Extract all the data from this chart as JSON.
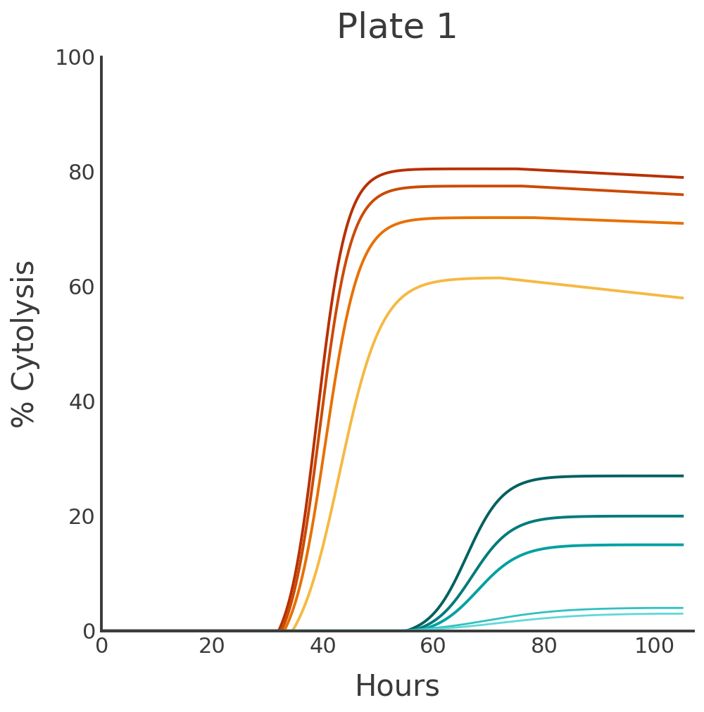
{
  "title": "Plate 1",
  "xlabel": "Hours",
  "ylabel": "% Cytolysis",
  "xlim": [
    0,
    107
  ],
  "ylim": [
    0,
    100
  ],
  "xticks": [
    0,
    20,
    40,
    60,
    80,
    100
  ],
  "yticks": [
    0,
    20,
    40,
    60,
    80,
    100
  ],
  "title_fontsize": 36,
  "label_fontsize": 30,
  "tick_fontsize": 22,
  "background_color": "#ffffff",
  "axis_color": "#3a3a3a",
  "series": [
    {
      "color": "#b83000",
      "linewidth": 2.8,
      "start_x": 32.0,
      "inflection_x": 39.0,
      "k": 0.38,
      "peak_x": 75,
      "peak_y": 80.5,
      "end_x": 105,
      "end_y": 79.0
    },
    {
      "color": "#cc4a00",
      "linewidth": 2.8,
      "start_x": 32.5,
      "inflection_x": 39.5,
      "k": 0.36,
      "peak_x": 76,
      "peak_y": 77.5,
      "end_x": 105,
      "end_y": 76.0
    },
    {
      "color": "#e87000",
      "linewidth": 2.8,
      "start_x": 33.0,
      "inflection_x": 40.5,
      "k": 0.33,
      "peak_x": 78,
      "peak_y": 72.0,
      "end_x": 105,
      "end_y": 71.0
    },
    {
      "color": "#f5b942",
      "linewidth": 2.8,
      "start_x": 34.5,
      "inflection_x": 43.0,
      "k": 0.26,
      "peak_x": 72,
      "peak_y": 61.5,
      "end_x": 105,
      "end_y": 58.0
    },
    {
      "color": "#006060",
      "linewidth": 2.8,
      "start_x": 55.0,
      "inflection_x": 66.0,
      "k": 0.3,
      "peak_x": 96,
      "peak_y": 27.0,
      "end_x": 105,
      "end_y": 27.0
    },
    {
      "color": "#007a7a",
      "linewidth": 2.8,
      "start_x": 56.0,
      "inflection_x": 67.0,
      "k": 0.28,
      "peak_x": 97,
      "peak_y": 20.0,
      "end_x": 105,
      "end_y": 20.0
    },
    {
      "color": "#00a0a0",
      "linewidth": 2.8,
      "start_x": 57.0,
      "inflection_x": 68.0,
      "k": 0.26,
      "peak_x": 98,
      "peak_y": 15.0,
      "end_x": 105,
      "end_y": 15.0
    },
    {
      "color": "#30c0c0",
      "linewidth": 2.0,
      "start_x": 53.0,
      "inflection_x": 70.0,
      "k": 0.15,
      "peak_x": 100,
      "peak_y": 4.0,
      "end_x": 105,
      "end_y": 4.0
    },
    {
      "color": "#60d8d8",
      "linewidth": 2.0,
      "start_x": 54.0,
      "inflection_x": 72.0,
      "k": 0.13,
      "peak_x": 101,
      "peak_y": 3.0,
      "end_x": 105,
      "end_y": 3.0
    }
  ]
}
